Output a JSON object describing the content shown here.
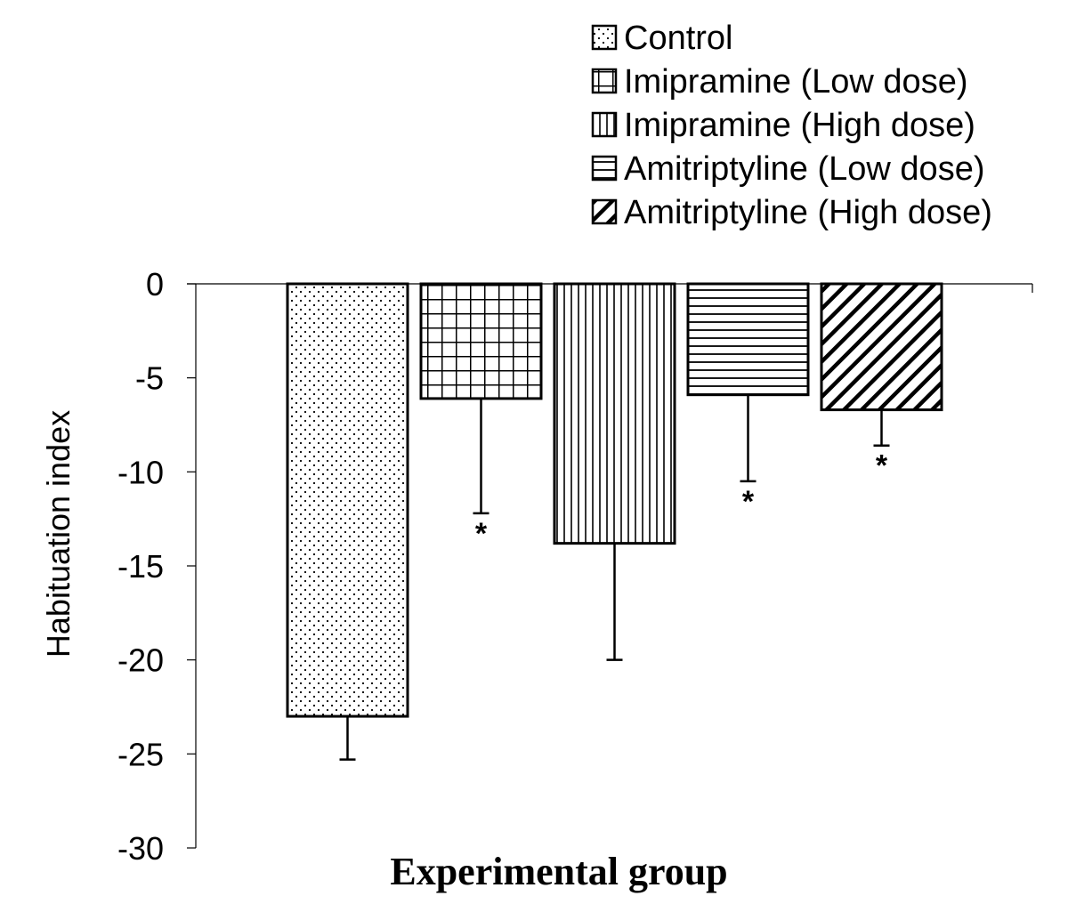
{
  "chart_data": {
    "type": "bar",
    "xlabel": "Experimental group",
    "ylabel": "Habituation index",
    "ylim": [
      -30,
      0
    ],
    "yticks": [
      0,
      -5,
      -10,
      -15,
      -20,
      -25,
      -30
    ],
    "grid": false,
    "legend_position": "top-right",
    "series": [
      {
        "name": "Control",
        "value": -23.0,
        "error": 2.3,
        "significant": false,
        "pattern": "dots"
      },
      {
        "name": "Imipramine (Low dose)",
        "value": -6.1,
        "error": 6.1,
        "significant": true,
        "pattern": "grid"
      },
      {
        "name": "Imipramine (High dose)",
        "value": -13.8,
        "error": 6.2,
        "significant": false,
        "pattern": "vertical"
      },
      {
        "name": "Amitriptyline (Low dose)",
        "value": -5.9,
        "error": 4.6,
        "significant": true,
        "pattern": "horizontal"
      },
      {
        "name": "Amitriptyline (High dose)",
        "value": -6.7,
        "error": 1.9,
        "significant": true,
        "pattern": "diagonal"
      }
    ],
    "significance_marker": "*"
  }
}
